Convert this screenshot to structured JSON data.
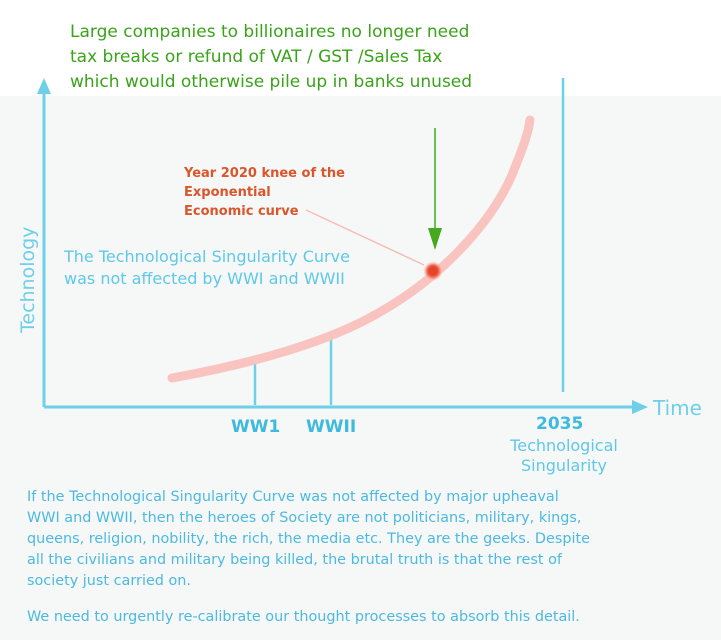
{
  "header_note": {
    "lines": [
      "Large companies to billionaires no longer need",
      "tax breaks or refund of VAT / GST /Sales Tax",
      "which would otherwise pile up in banks unused"
    ],
    "color": "#3aa31a"
  },
  "diagram": {
    "y_axis_label": "Technology",
    "x_axis_label": "Time",
    "knee_label_lines": [
      "Year 2020 knee of the",
      "Exponential",
      "Economic curve"
    ],
    "curve_note_lines": [
      "The Technological Singularity Curve",
      "was not affected by WWI and WWII"
    ],
    "markers": {
      "ww1": "WW1",
      "ww2": "WWII",
      "year": "2035",
      "singularity_lines": [
        "Technological",
        "Singularity"
      ]
    },
    "colors": {
      "axis": "#6ecfe8",
      "curve": "#f9c4c0",
      "knee_dot": "#e8442a",
      "knee_text": "#d9562b",
      "arrow": "#46a81e"
    }
  },
  "body_text": {
    "paragraph1_lines": [
      "If the Technological Singularity Curve was not affected by major upheaval",
      "WWI and WWII, then the heroes of Society are not politicians, military, kings,",
      "queens, religion, nobility, the rich, the media etc. They are the geeks. Despite",
      "all the civilians and military being killed, the brutal truth is that the rest of",
      "society just carried on."
    ],
    "paragraph2": "We need to urgently re-calibrate our thought processes to absorb this detail."
  }
}
